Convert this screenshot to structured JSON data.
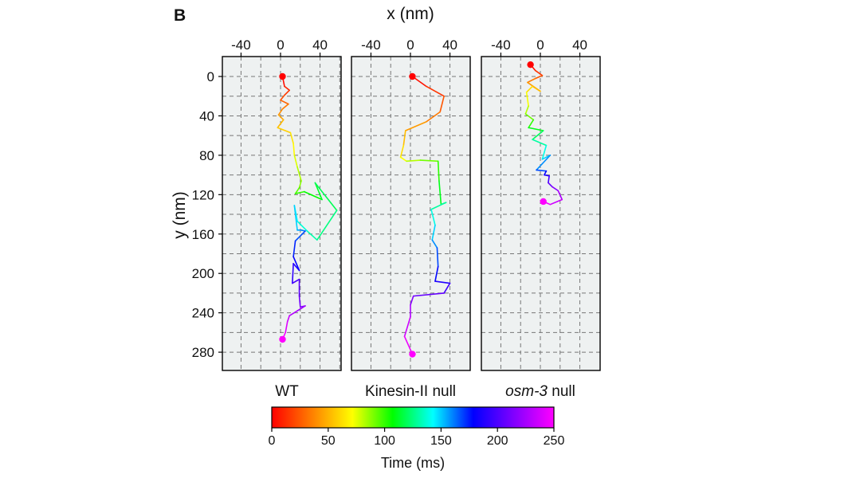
{
  "figure_letter": "B",
  "colors": {
    "panel_bg": "#eef1f1",
    "grid": "#777777",
    "colormap": [
      "#ff0000",
      "#ff8000",
      "#ffff00",
      "#00ff00",
      "#00ffff",
      "#0000ff",
      "#8000ff",
      "#ff00ff"
    ]
  },
  "chart_data": {
    "type": "line",
    "xlabel": "x (nm)",
    "ylabel": "y (nm)",
    "xlim": [
      -60,
      60
    ],
    "ylim": [
      -15,
      300
    ],
    "x_ticks": [
      -40,
      0,
      40
    ],
    "y_ticks": [
      0,
      40,
      80,
      120,
      160,
      200,
      240,
      280
    ],
    "grid": true,
    "y_inverted": true,
    "colorbar": {
      "title": "Time (ms)",
      "range": [
        0,
        250
      ],
      "ticks": [
        0,
        50,
        100,
        150,
        200,
        250
      ]
    },
    "panels": [
      {
        "name": "WT",
        "points": [
          [
            2,
            0
          ],
          [
            4,
            10
          ],
          [
            9,
            14
          ],
          [
            4,
            19
          ],
          [
            0,
            24
          ],
          [
            8,
            28
          ],
          [
            2,
            33
          ],
          [
            -2,
            39
          ],
          [
            3,
            44
          ],
          [
            -3,
            52
          ],
          [
            10,
            57
          ],
          [
            13,
            68
          ],
          [
            14,
            80
          ],
          [
            17,
            92
          ],
          [
            21,
            106
          ],
          [
            19,
            113
          ],
          [
            15,
            119
          ],
          [
            24,
            117
          ],
          [
            42,
            125
          ],
          [
            35,
            108
          ],
          [
            57,
            136
          ],
          [
            37,
            166
          ],
          [
            27,
            157
          ],
          [
            17,
            147
          ],
          [
            14,
            131
          ],
          [
            17,
            156
          ],
          [
            21,
            156
          ],
          [
            25,
            157
          ],
          [
            15,
            167
          ],
          [
            13,
            183
          ],
          [
            19,
            197
          ],
          [
            13,
            190
          ],
          [
            12,
            210
          ],
          [
            19,
            206
          ],
          [
            19,
            223
          ],
          [
            20,
            234
          ],
          [
            25,
            233
          ],
          [
            17,
            238
          ],
          [
            9,
            243
          ],
          [
            7,
            249
          ],
          [
            5,
            260
          ],
          [
            2,
            267
          ]
        ]
      },
      {
        "name": "Kinesin-II null",
        "points": [
          [
            2,
            0
          ],
          [
            16,
            10
          ],
          [
            34,
            20
          ],
          [
            30,
            36
          ],
          [
            16,
            46
          ],
          [
            -5,
            55
          ],
          [
            -7,
            70
          ],
          [
            -10,
            82
          ],
          [
            -4,
            86
          ],
          [
            10,
            85
          ],
          [
            28,
            86
          ],
          [
            29,
            106
          ],
          [
            31,
            130
          ],
          [
            36,
            128
          ],
          [
            21,
            135
          ],
          [
            25,
            151
          ],
          [
            22,
            166
          ],
          [
            27,
            174
          ],
          [
            28,
            193
          ],
          [
            25,
            208
          ],
          [
            40,
            210
          ],
          [
            34,
            220
          ],
          [
            3,
            223
          ],
          [
            0,
            232
          ],
          [
            0,
            244
          ],
          [
            -6,
            264
          ],
          [
            2,
            282
          ]
        ]
      },
      {
        "name": "osm-3 null",
        "italic_part": "osm-3",
        "plain_part": " null",
        "points": [
          [
            -10,
            -12
          ],
          [
            -5,
            -6
          ],
          [
            2,
            -1
          ],
          [
            -5,
            2
          ],
          [
            -13,
            6
          ],
          [
            0,
            15
          ],
          [
            -8,
            10
          ],
          [
            -14,
            16
          ],
          [
            -12,
            30
          ],
          [
            -15,
            38
          ],
          [
            -7,
            44
          ],
          [
            -12,
            52
          ],
          [
            3,
            55
          ],
          [
            -8,
            64
          ],
          [
            6,
            70
          ],
          [
            2,
            84
          ],
          [
            10,
            80
          ],
          [
            -4,
            95
          ],
          [
            6,
            96
          ],
          [
            4,
            100
          ],
          [
            9,
            101
          ],
          [
            8,
            108
          ],
          [
            12,
            112
          ],
          [
            18,
            116
          ],
          [
            22,
            125
          ],
          [
            10,
            130
          ],
          [
            3,
            127
          ]
        ]
      }
    ]
  }
}
